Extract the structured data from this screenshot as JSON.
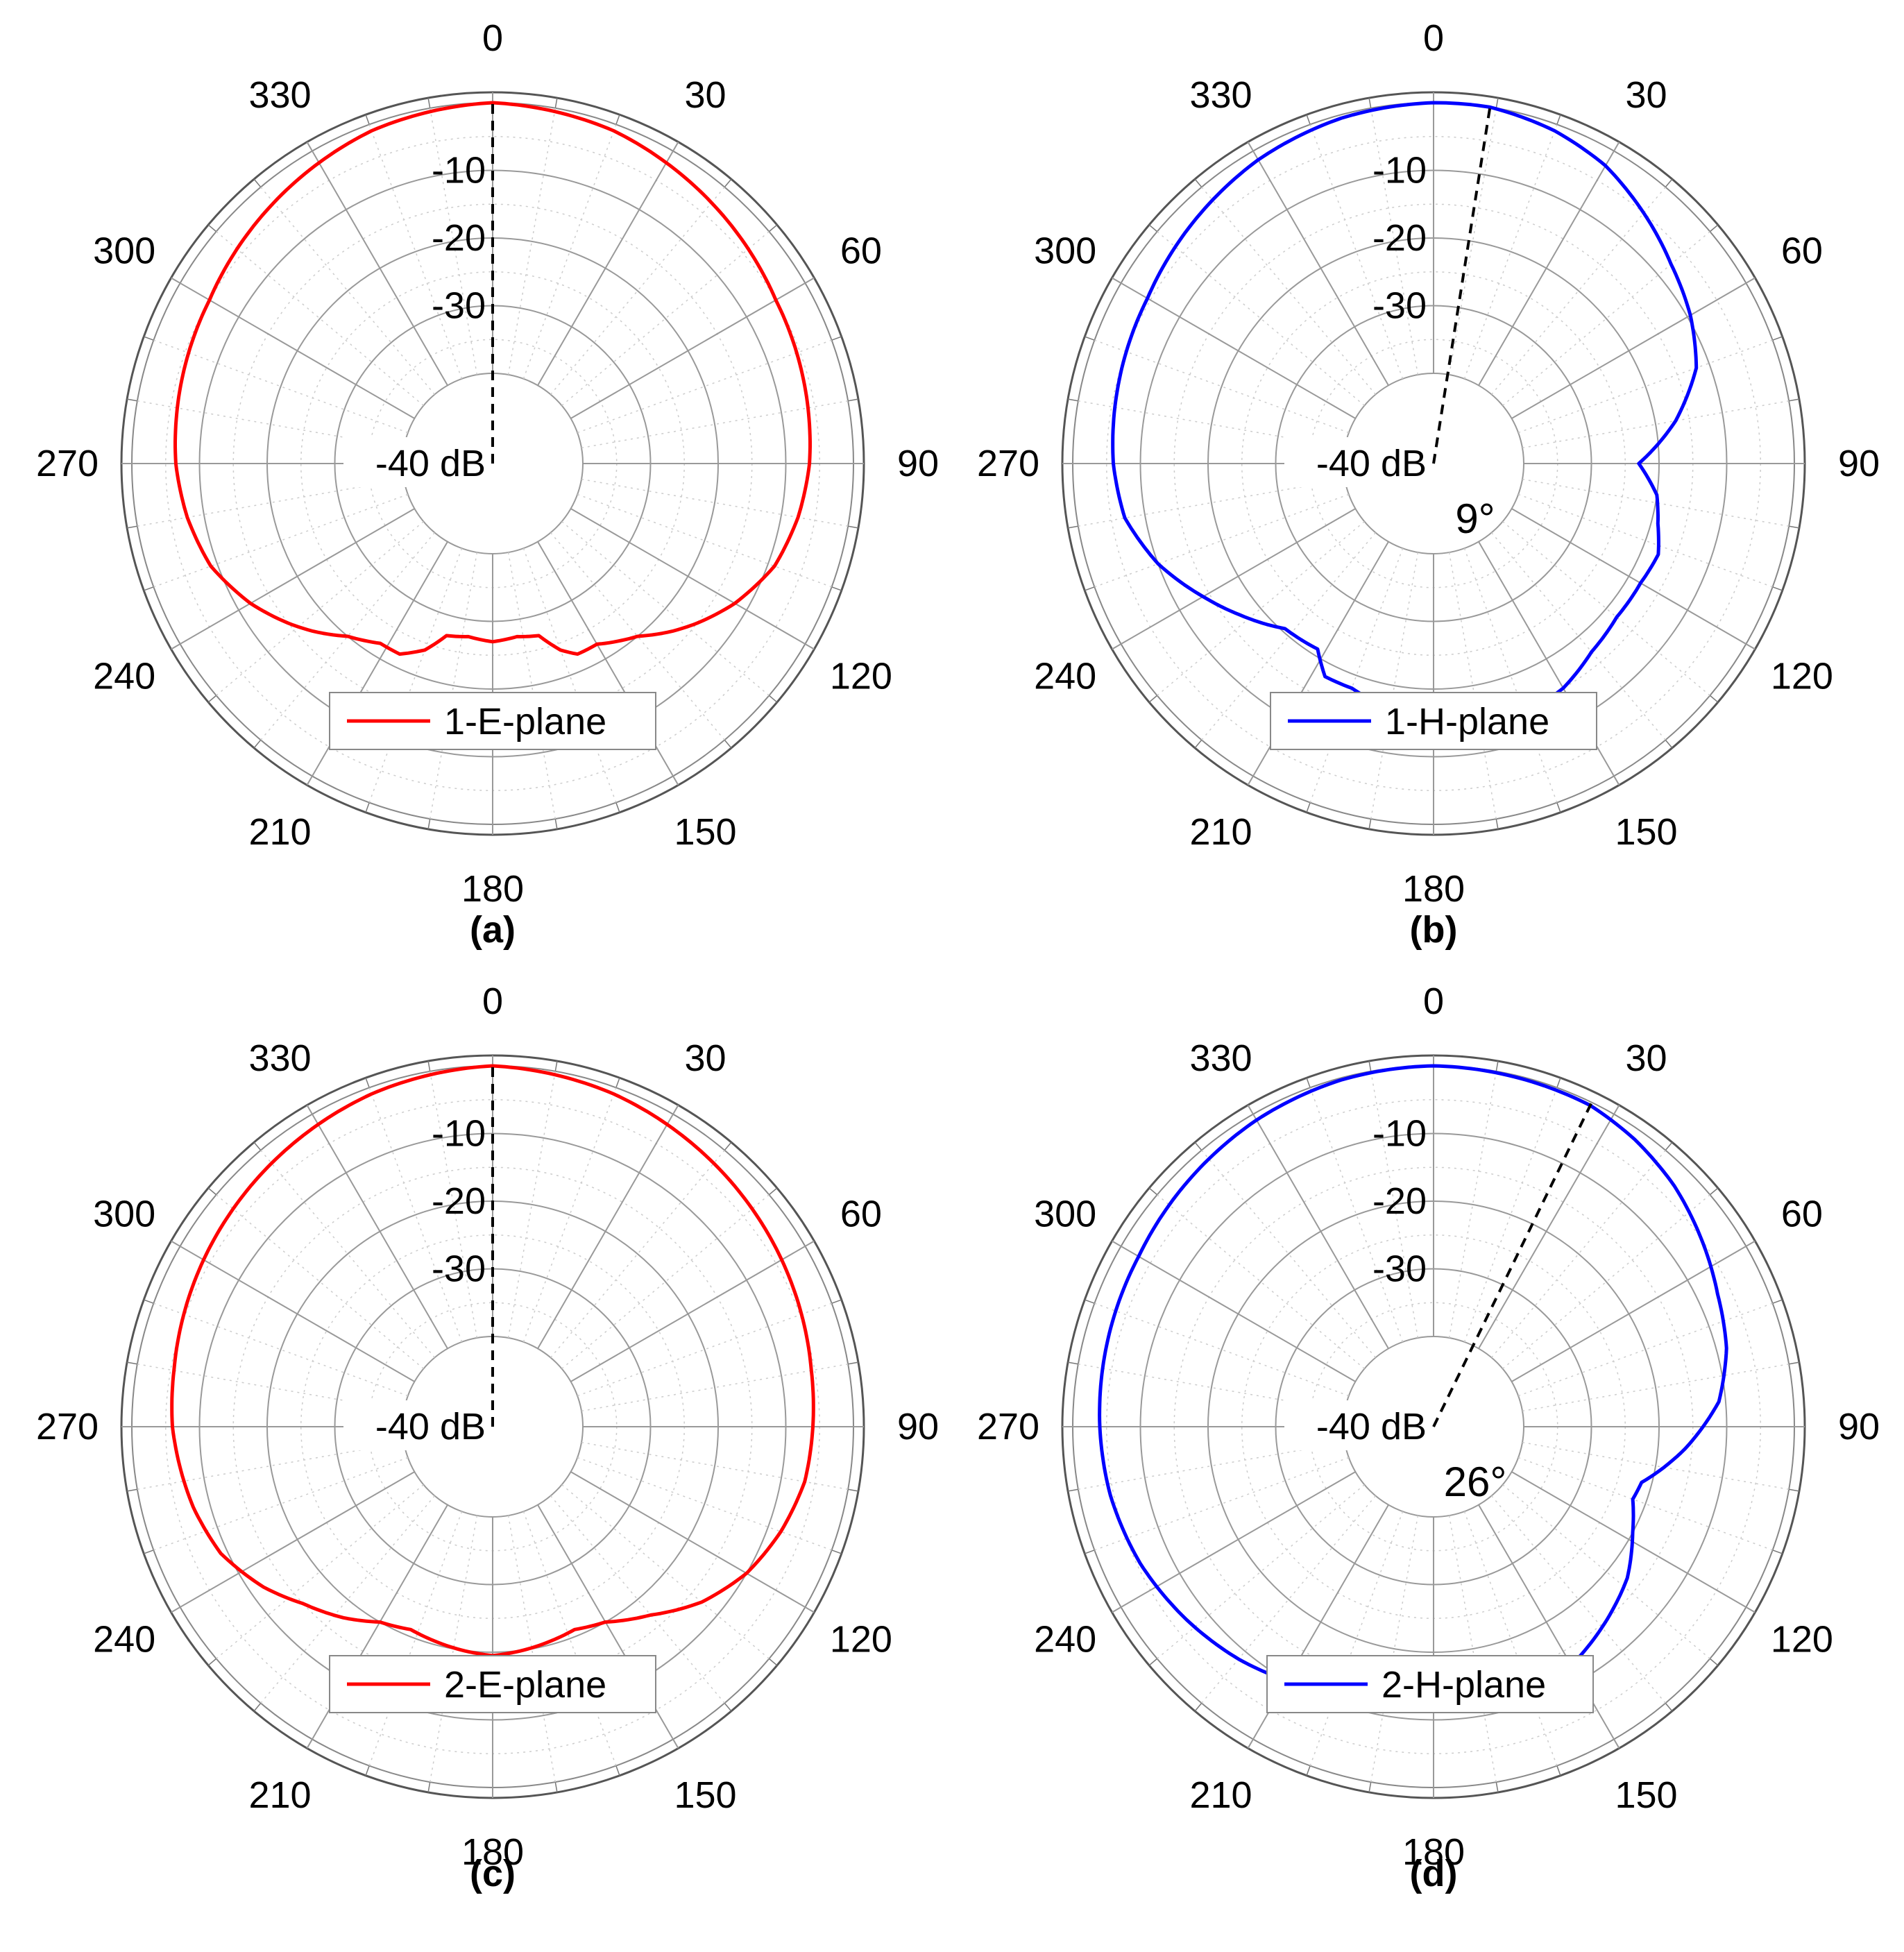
{
  "chart_data": [
    {
      "type": "polar-line",
      "panel_label": "(a)",
      "angle_ticks": [
        "0",
        "30",
        "60",
        "90",
        "120",
        "150",
        "180",
        "210",
        "240",
        "270",
        "300",
        "330"
      ],
      "radial_ticks": [
        "-10",
        "-20",
        "-30",
        "-40 dB"
      ],
      "rlim": [
        -40,
        0
      ],
      "grid": true,
      "legend_position": "bottom",
      "series": [
        {
          "name": "1-E-plane",
          "color": "#ff0000",
          "points": [
            [
              0,
              0
            ],
            [
              20,
              -1
            ],
            [
              40,
              -3
            ],
            [
              60,
              -5
            ],
            [
              80,
              -6
            ],
            [
              90,
              -6.5
            ],
            [
              100,
              -7.5
            ],
            [
              110,
              -9
            ],
            [
              120,
              -12
            ],
            [
              128,
              -15
            ],
            [
              133,
              -17
            ],
            [
              140,
              -20
            ],
            [
              150,
              -22.5
            ],
            [
              156,
              -22.5
            ],
            [
              160,
              -24
            ],
            [
              165,
              -27
            ],
            [
              172,
              -27.5
            ],
            [
              180,
              -27
            ],
            [
              188,
              -27.5
            ],
            [
              195,
              -27
            ],
            [
              200,
              -24
            ],
            [
              206,
              -22
            ],
            [
              212,
              -22
            ],
            [
              220,
              -20
            ],
            [
              227,
              -17
            ],
            [
              232,
              -15
            ],
            [
              240,
              -12
            ],
            [
              250,
              -9
            ],
            [
              260,
              -7.5
            ],
            [
              270,
              -6.5
            ],
            [
              280,
              -6
            ],
            [
              300,
              -5
            ],
            [
              320,
              -3
            ],
            [
              340,
              -1
            ],
            [
              360,
              0
            ]
          ]
        }
      ],
      "reference_line_deg": 0
    },
    {
      "type": "polar-line",
      "panel_label": "(b)",
      "angle_ticks": [
        "0",
        "30",
        "60",
        "90",
        "120",
        "150",
        "180",
        "210",
        "240",
        "270",
        "300",
        "330"
      ],
      "radial_ticks": [
        "-10",
        "-20",
        "-30",
        "-40 dB"
      ],
      "rlim": [
        -40,
        0
      ],
      "grid": true,
      "legend_position": "bottom",
      "annotation": "9°",
      "series": [
        {
          "name": "1-H-plane",
          "color": "#0000ff",
          "points": [
            [
              0,
              0
            ],
            [
              9,
              0
            ],
            [
              20,
              -1
            ],
            [
              30,
              -2.5
            ],
            [
              40,
              -5
            ],
            [
              50,
              -7.5
            ],
            [
              60,
              -9.5
            ],
            [
              70,
              -12
            ],
            [
              80,
              -17
            ],
            [
              90,
              -23
            ],
            [
              98,
              -20
            ],
            [
              105,
              -19
            ],
            [
              112,
              -17.5
            ],
            [
              120,
              -18
            ],
            [
              130,
              -18
            ],
            [
              140,
              -17
            ],
            [
              150,
              -15
            ],
            [
              160,
              -14
            ],
            [
              170,
              -14.5
            ],
            [
              180,
              -15
            ],
            [
              190,
              -16.5
            ],
            [
              200,
              -18
            ],
            [
              207,
              -18
            ],
            [
              212,
              -21
            ],
            [
              222,
              -20.5
            ],
            [
              232,
              -17
            ],
            [
              240,
              -14
            ],
            [
              250,
              -10
            ],
            [
              260,
              -7
            ],
            [
              270,
              -6
            ],
            [
              280,
              -5.5
            ],
            [
              290,
              -5
            ],
            [
              300,
              -4.5
            ],
            [
              315,
              -3
            ],
            [
              330,
              -1.5
            ],
            [
              345,
              -0.5
            ],
            [
              360,
              0
            ]
          ]
        }
      ],
      "reference_line_deg": 9
    },
    {
      "type": "polar-line",
      "panel_label": "(c)",
      "angle_ticks": [
        "0",
        "30",
        "60",
        "90",
        "120",
        "150",
        "180",
        "210",
        "240",
        "270",
        "300",
        "330"
      ],
      "radial_ticks": [
        "-10",
        "-20",
        "-30",
        "-40 dB"
      ],
      "rlim": [
        -40,
        0
      ],
      "grid": true,
      "legend_position": "bottom",
      "series": [
        {
          "name": "2-E-plane",
          "color": "#ff0000",
          "points": [
            [
              0,
              0
            ],
            [
              20,
              -1
            ],
            [
              40,
              -2.5
            ],
            [
              60,
              -4
            ],
            [
              80,
              -5.5
            ],
            [
              90,
              -6
            ],
            [
              100,
              -6.5
            ],
            [
              110,
              -8
            ],
            [
              120,
              -10
            ],
            [
              130,
              -13
            ],
            [
              140,
              -17
            ],
            [
              150,
              -20
            ],
            [
              158,
              -21
            ],
            [
              165,
              -20.5
            ],
            [
              172,
              -20
            ],
            [
              180,
              -19.5
            ],
            [
              188,
              -20
            ],
            [
              195,
              -20.5
            ],
            [
              202,
              -21
            ],
            [
              210,
              -20
            ],
            [
              218,
              -17.5
            ],
            [
              227,
              -15
            ],
            [
              235,
              -12
            ],
            [
              245,
              -9
            ],
            [
              255,
              -7.5
            ],
            [
              265,
              -6.5
            ],
            [
              270,
              -6
            ],
            [
              280,
              -5.5
            ],
            [
              300,
              -4
            ],
            [
              320,
              -2.5
            ],
            [
              340,
              -1
            ],
            [
              360,
              0
            ]
          ]
        }
      ],
      "reference_line_deg": 0
    },
    {
      "type": "polar-line",
      "panel_label": "(d)",
      "angle_ticks": [
        "0",
        "30",
        "60",
        "90",
        "120",
        "150",
        "180",
        "210",
        "240",
        "270",
        "300",
        "330"
      ],
      "radial_ticks": [
        "-10",
        "-20",
        "-30",
        "-40 dB"
      ],
      "rlim": [
        -40,
        0
      ],
      "grid": true,
      "legend_position": "bottom",
      "annotation": "26°",
      "series": [
        {
          "name": "2-H-plane",
          "color": "#0000ff",
          "points": [
            [
              0,
              0
            ],
            [
              15,
              -0.3
            ],
            [
              26,
              -0.5
            ],
            [
              35,
              -1.5
            ],
            [
              45,
              -3
            ],
            [
              55,
              -5
            ],
            [
              65,
              -7
            ],
            [
              75,
              -8.5
            ],
            [
              85,
              -11
            ],
            [
              95,
              -16
            ],
            [
              105,
              -21.5
            ],
            [
              110,
              -22
            ],
            [
              118,
              -20
            ],
            [
              128,
              -17
            ],
            [
              138,
              -15
            ],
            [
              148,
              -13
            ],
            [
              160,
              -12
            ],
            [
              170,
              -11.5
            ],
            [
              180,
              -11.5
            ],
            [
              190,
              -11.5
            ],
            [
              200,
              -11
            ],
            [
              210,
              -10
            ],
            [
              220,
              -8.5
            ],
            [
              232,
              -7
            ],
            [
              245,
              -5.5
            ],
            [
              258,
              -4.5
            ],
            [
              270,
              -4
            ],
            [
              285,
              -3.5
            ],
            [
              300,
              -3
            ],
            [
              315,
              -2
            ],
            [
              330,
              -1
            ],
            [
              345,
              -0.3
            ],
            [
              360,
              0
            ]
          ]
        }
      ],
      "reference_line_deg": 26
    }
  ]
}
